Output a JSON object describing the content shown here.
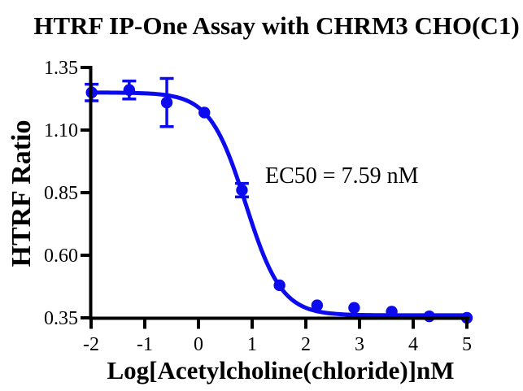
{
  "page": {
    "background": "#ffffff"
  },
  "chart_data": {
    "type": "scatter",
    "title": "HTRF IP-One Assay with CHRM3 CHO(C1)",
    "xlabel": "Log[Acetylcholine(chloride)]nM",
    "ylabel": "HTRF Ratio",
    "annotation": "EC50 = 7.59 nM",
    "ec50_nM": 7.59,
    "series_color": "#0b0bee",
    "axis_color": "#000000",
    "grid": false,
    "legend": "none",
    "xlim": [
      -2,
      5
    ],
    "ylim": [
      0.35,
      1.35
    ],
    "xticks": [
      -2,
      -1,
      0,
      1,
      2,
      3,
      4,
      5
    ],
    "xtick_labels": [
      "-2",
      "-1",
      "0",
      "1",
      "2",
      "3",
      "4",
      "5"
    ],
    "yticks": [
      0.35,
      0.6,
      0.85,
      1.1,
      1.35
    ],
    "ytick_labels": [
      "0.35",
      "0.60",
      "0.85",
      "1.10",
      "1.35"
    ],
    "points": [
      {
        "log_conc": -1.99,
        "htrf_ratio": 1.25,
        "error": 0.033
      },
      {
        "log_conc": -1.29,
        "htrf_ratio": 1.26,
        "error": 0.036
      },
      {
        "log_conc": -0.59,
        "htrf_ratio": 1.21,
        "error": 0.096
      },
      {
        "log_conc": 0.11,
        "htrf_ratio": 1.17,
        "error": 0
      },
      {
        "log_conc": 0.81,
        "htrf_ratio": 0.86,
        "error": 0.027
      },
      {
        "log_conc": 1.51,
        "htrf_ratio": 0.48,
        "error": 0
      },
      {
        "log_conc": 2.21,
        "htrf_ratio": 0.4,
        "error": 0
      },
      {
        "log_conc": 2.9,
        "htrf_ratio": 0.39,
        "error": 0
      },
      {
        "log_conc": 3.6,
        "htrf_ratio": 0.375,
        "error": 0
      },
      {
        "log_conc": 4.3,
        "htrf_ratio": 0.356,
        "error": 0
      },
      {
        "log_conc": 5.0,
        "htrf_ratio": 0.35,
        "error": 0
      }
    ],
    "fit_curve": {
      "model": "four-parameter-logistic",
      "bottom": 0.36,
      "top": 1.25,
      "log_ec50": 0.88,
      "hill_slope": 1.3
    }
  }
}
